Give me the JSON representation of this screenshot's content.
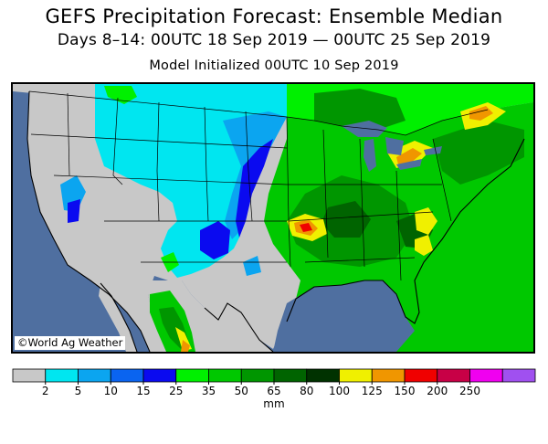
{
  "title": "GEFS Precipitation Forecast: Ensemble Median",
  "subtitle": "Days 8–14: 00UTC 18 Sep 2019 — 00UTC 25 Sep 2019",
  "init": "Model Initialized 00UTC 10 Sep 2019",
  "credit": "©World Ag Weather",
  "legend": {
    "unit": "mm",
    "ticks": [
      "2",
      "5",
      "10",
      "15",
      "25",
      "35",
      "50",
      "65",
      "80",
      "100",
      "125",
      "150",
      "200",
      "250"
    ],
    "colors": [
      "#c8c8c8",
      "#00e6f0",
      "#0ba5f0",
      "#0a64f0",
      "#0a0af0",
      "#00f000",
      "#00c800",
      "#009600",
      "#006400",
      "#003200",
      "#f0f000",
      "#f09600",
      "#f00000",
      "#c80046",
      "#f000f0",
      "#a050f0"
    ]
  },
  "map": {
    "ocean_color": "#4f6fa0",
    "land_color": "#c8c8c8",
    "features": [
      "precipitation-shading",
      "state-boundaries",
      "great-lakes"
    ]
  }
}
